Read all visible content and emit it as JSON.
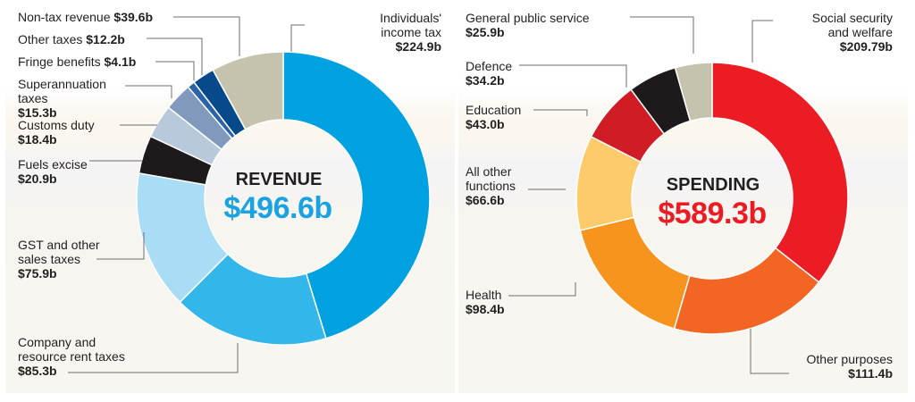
{
  "chart_data": [
    {
      "type": "donut",
      "id": "revenue",
      "center_title": "REVENUE",
      "center_total": "$496.6b",
      "center_color": "#1aa3e0",
      "slices": [
        {
          "name": "Individuals' income tax",
          "value": 224.9,
          "label_name": "Individuals'\nincome tax",
          "label_value": "$224.9b",
          "color": "#00a1e1"
        },
        {
          "name": "Company and resource rent taxes",
          "value": 85.3,
          "label_name": "Company and\nresource rent taxes",
          "label_value": "$85.3b",
          "color": "#33b7ea"
        },
        {
          "name": "GST and other sales taxes",
          "value": 75.9,
          "label_name": "GST and other\nsales taxes",
          "label_value": "$75.9b",
          "color": "#a9dcf5"
        },
        {
          "name": "Fuels excise",
          "value": 20.9,
          "label_name": "Fuels excise",
          "label_value": "$20.9b",
          "color": "#1e1a1b"
        },
        {
          "name": "Customs duty",
          "value": 18.4,
          "label_name": "Customs duty",
          "label_value": "$18.4b",
          "color": "#b9c9dc"
        },
        {
          "name": "Superannuation taxes",
          "value": 15.3,
          "label_name": "Superannuation\ntaxes",
          "label_value": "$15.3b",
          "color": "#8099bd"
        },
        {
          "name": "Fringe benefits",
          "value": 4.1,
          "label_name": "Fringe benefits",
          "label_value": "$4.1b",
          "color": "#2c63a8"
        },
        {
          "name": "Other taxes",
          "value": 12.2,
          "label_name": "Other taxes",
          "label_value": "$12.2b",
          "color": "#064a8c"
        },
        {
          "name": "Non-tax revenue",
          "value": 39.6,
          "label_name": "Non-tax revenue",
          "label_value": "$39.6b",
          "color": "#c5c3ad"
        }
      ]
    },
    {
      "type": "donut",
      "id": "spending",
      "center_title": "SPENDING",
      "center_total": "$589.3b",
      "center_color": "#ec1c24",
      "slices": [
        {
          "name": "Social security and welfare",
          "value": 209.79,
          "label_name": "Social security\nand welfare",
          "label_value": "$209.79b",
          "color": "#ec1c24"
        },
        {
          "name": "Other purposes",
          "value": 111.4,
          "label_name": "Other purposes",
          "label_value": "$111.4b",
          "color": "#f26522"
        },
        {
          "name": "Health",
          "value": 98.4,
          "label_name": "Health",
          "label_value": "$98.4b",
          "color": "#f7941d"
        },
        {
          "name": "All other functions",
          "value": 66.6,
          "label_name": "All other\nfunctions",
          "label_value": "$66.6b",
          "color": "#fdcb6a"
        },
        {
          "name": "Education",
          "value": 43.0,
          "label_name": "Education",
          "label_value": "$43.0b",
          "color": "#d01c25"
        },
        {
          "name": "Defence",
          "value": 34.2,
          "label_name": "Defence",
          "label_value": "$34.2b",
          "color": "#1e1a1b"
        },
        {
          "name": "General public service",
          "value": 25.9,
          "label_name": "General public service",
          "label_value": "$25.9b",
          "color": "#c5c3ad"
        }
      ]
    }
  ]
}
